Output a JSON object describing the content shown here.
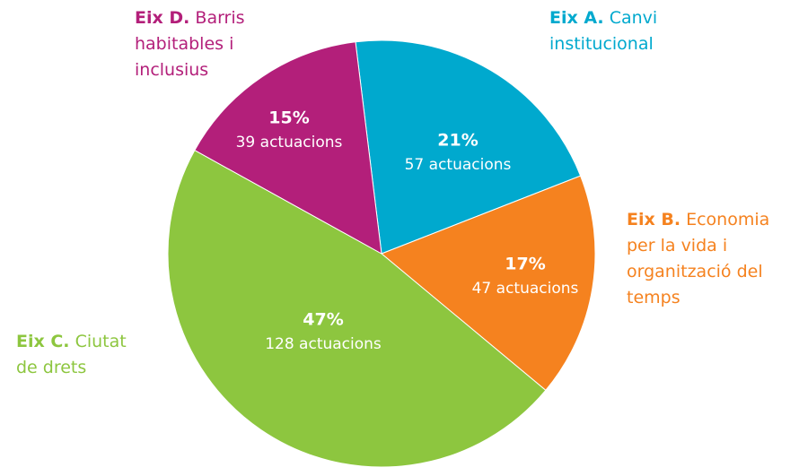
{
  "chart_data": {
    "type": "pie",
    "category_codes": [
      "Eix A.",
      "Eix B.",
      "Eix C.",
      "Eix D."
    ],
    "categories": [
      "Canvi institucional",
      "Economia per la vida i organització del temps",
      "Ciutat de drets",
      "Barris habitables i inclusius"
    ],
    "values": [
      21,
      17,
      47,
      15
    ],
    "value_labels": [
      "21%",
      "17%",
      "47%",
      "15%"
    ],
    "count_labels": [
      "57 actuacions",
      "47 actuacions",
      "128 actuacions",
      "39 actuacions"
    ],
    "colors": [
      "#00a9ce",
      "#f5821f",
      "#8dc63f",
      "#b31f7a"
    ]
  }
}
